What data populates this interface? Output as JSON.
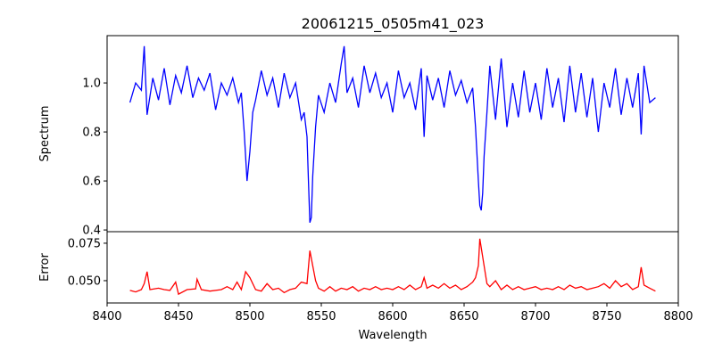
{
  "chart_data": [
    {
      "type": "line",
      "title": "20061215_0505m41_023",
      "xlabel": "",
      "ylabel": "Spectrum",
      "xlim": [
        8400,
        8800
      ],
      "ylim": [
        0.393,
        1.193
      ],
      "yticks": [
        0.4,
        0.6,
        0.8,
        1.0
      ],
      "ytick_labels": [
        "0.4",
        "0.6",
        "0.8",
        "1.0"
      ],
      "color": "#0000ff",
      "x": [
        8416,
        8420,
        8424,
        8426,
        8428,
        8432,
        8436,
        8440,
        8444,
        8448,
        8452,
        8456,
        8460,
        8464,
        8468,
        8472,
        8476,
        8480,
        8484,
        8488,
        8492,
        8494,
        8496,
        8498,
        8500,
        8502,
        8504,
        8508,
        8512,
        8516,
        8520,
        8524,
        8528,
        8532,
        8536,
        8538,
        8540,
        8541,
        8542,
        8543,
        8544,
        8546,
        8548,
        8552,
        8556,
        8560,
        8564,
        8566,
        8568,
        8572,
        8576,
        8580,
        8584,
        8588,
        8592,
        8596,
        8600,
        8604,
        8608,
        8612,
        8616,
        8620,
        8622,
        8624,
        8628,
        8632,
        8636,
        8640,
        8644,
        8648,
        8652,
        8656,
        8658,
        8660,
        8661,
        8662,
        8663,
        8664,
        8666,
        8668,
        8672,
        8676,
        8680,
        8684,
        8688,
        8692,
        8696,
        8700,
        8704,
        8708,
        8712,
        8716,
        8720,
        8724,
        8728,
        8732,
        8736,
        8740,
        8744,
        8748,
        8752,
        8756,
        8760,
        8764,
        8768,
        8772,
        8774,
        8776,
        8780,
        8784
      ],
      "y": [
        0.92,
        1.0,
        0.97,
        1.15,
        0.87,
        1.02,
        0.93,
        1.06,
        0.91,
        1.03,
        0.96,
        1.07,
        0.94,
        1.02,
        0.97,
        1.04,
        0.89,
        1.0,
        0.95,
        1.02,
        0.92,
        0.96,
        0.8,
        0.6,
        0.72,
        0.88,
        0.93,
        1.05,
        0.95,
        1.02,
        0.9,
        1.04,
        0.94,
        1.0,
        0.85,
        0.88,
        0.78,
        0.6,
        0.43,
        0.45,
        0.62,
        0.82,
        0.95,
        0.88,
        1.0,
        0.92,
        1.08,
        1.15,
        0.96,
        1.02,
        0.9,
        1.07,
        0.96,
        1.04,
        0.94,
        1.0,
        0.88,
        1.05,
        0.94,
        1.0,
        0.89,
        1.06,
        0.78,
        1.03,
        0.93,
        1.02,
        0.9,
        1.05,
        0.95,
        1.01,
        0.92,
        0.98,
        0.82,
        0.6,
        0.5,
        0.48,
        0.55,
        0.7,
        0.88,
        1.07,
        0.85,
        1.1,
        0.82,
        1.0,
        0.86,
        1.05,
        0.88,
        1.0,
        0.85,
        1.06,
        0.9,
        1.02,
        0.84,
        1.07,
        0.88,
        1.04,
        0.86,
        1.02,
        0.8,
        1.0,
        0.9,
        1.06,
        0.87,
        1.02,
        0.9,
        1.04,
        0.79,
        1.07,
        0.92,
        0.94
      ]
    },
    {
      "type": "line",
      "title": "",
      "xlabel": "Wavelength",
      "ylabel": "Error",
      "xlim": [
        8400,
        8800
      ],
      "ylim": [
        0.0351,
        0.0827
      ],
      "xticks": [
        8400,
        8450,
        8500,
        8550,
        8600,
        8650,
        8700,
        8750,
        8800
      ],
      "xtick_labels": [
        "8400",
        "8450",
        "8500",
        "8550",
        "8600",
        "8650",
        "8700",
        "8750",
        "8800"
      ],
      "yticks": [
        0.05,
        0.075
      ],
      "ytick_labels": [
        "0.050",
        "0.075"
      ],
      "color": "#ff0000",
      "x": [
        8416,
        8420,
        8424,
        8426,
        8428,
        8430,
        8436,
        8440,
        8444,
        8448,
        8450,
        8456,
        8462,
        8463,
        8466,
        8472,
        8480,
        8484,
        8488,
        8491,
        8494,
        8497,
        8500,
        8504,
        8508,
        8512,
        8516,
        8520,
        8524,
        8528,
        8532,
        8536,
        8540,
        8542,
        8544,
        8546,
        8548,
        8552,
        8556,
        8560,
        8564,
        8568,
        8572,
        8576,
        8580,
        8584,
        8588,
        8592,
        8596,
        8600,
        8604,
        8608,
        8612,
        8616,
        8620,
        8622,
        8624,
        8628,
        8632,
        8636,
        8640,
        8644,
        8648,
        8652,
        8656,
        8658,
        8660,
        8661,
        8662,
        8664,
        8666,
        8668,
        8672,
        8676,
        8680,
        8684,
        8688,
        8692,
        8696,
        8700,
        8704,
        8708,
        8712,
        8716,
        8720,
        8724,
        8728,
        8732,
        8736,
        8740,
        8744,
        8748,
        8752,
        8756,
        8760,
        8764,
        8768,
        8772,
        8774,
        8776,
        8780,
        8784
      ],
      "y": [
        0.0435,
        0.0425,
        0.044,
        0.048,
        0.056,
        0.044,
        0.045,
        0.044,
        0.0435,
        0.049,
        0.041,
        0.044,
        0.0445,
        0.051,
        0.044,
        0.043,
        0.044,
        0.046,
        0.044,
        0.049,
        0.044,
        0.056,
        0.052,
        0.044,
        0.043,
        0.048,
        0.044,
        0.045,
        0.042,
        0.044,
        0.045,
        0.049,
        0.048,
        0.07,
        0.06,
        0.05,
        0.045,
        0.043,
        0.046,
        0.043,
        0.045,
        0.044,
        0.046,
        0.043,
        0.045,
        0.044,
        0.046,
        0.044,
        0.045,
        0.044,
        0.046,
        0.044,
        0.047,
        0.044,
        0.046,
        0.052,
        0.045,
        0.047,
        0.045,
        0.048,
        0.045,
        0.047,
        0.044,
        0.046,
        0.049,
        0.052,
        0.06,
        0.078,
        0.072,
        0.06,
        0.048,
        0.046,
        0.05,
        0.044,
        0.047,
        0.044,
        0.046,
        0.044,
        0.045,
        0.046,
        0.044,
        0.045,
        0.044,
        0.046,
        0.044,
        0.047,
        0.045,
        0.046,
        0.044,
        0.045,
        0.046,
        0.048,
        0.045,
        0.05,
        0.046,
        0.048,
        0.044,
        0.046,
        0.059,
        0.047,
        0.045,
        0.043
      ]
    }
  ]
}
